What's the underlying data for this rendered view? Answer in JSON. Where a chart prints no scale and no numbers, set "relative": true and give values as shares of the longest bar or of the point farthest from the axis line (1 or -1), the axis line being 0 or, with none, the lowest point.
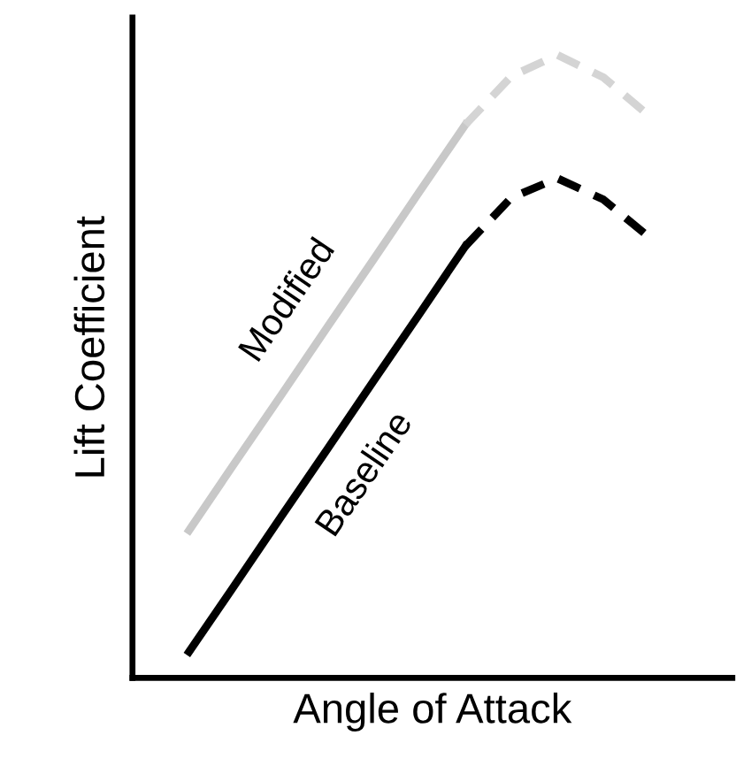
{
  "chart_data": {
    "type": "line",
    "relative": true,
    "xlabel": "Angle of Attack",
    "ylabel": "Lift Coefficient",
    "legend": false,
    "marker": "none",
    "categories": [
      null,
      null,
      null,
      null,
      null,
      null,
      null,
      null,
      null,
      null,
      null
    ],
    "series": [
      {
        "name": "Modified",
        "color": "#c8c8c8",
        "line_style": "solid",
        "values": [
          0.237,
          0.346,
          0.454,
          0.563,
          0.671,
          0.78,
          0.888,
          null,
          null,
          null,
          null
        ]
      },
      {
        "color": "#d4d4d4",
        "line_style": "dashed",
        "values": [
          null,
          null,
          null,
          null,
          null,
          null,
          0.888,
          0.966,
          1.0,
          0.964,
          0.902
        ]
      },
      {
        "name": "Baseline",
        "color": "#000000",
        "line_style": "solid",
        "values": [
          0.042,
          0.15,
          0.259,
          0.367,
          0.476,
          0.584,
          0.693,
          null,
          null,
          null,
          null
        ]
      },
      {
        "color": "#000000",
        "line_style": "dashed",
        "values": [
          null,
          null,
          null,
          null,
          null,
          null,
          0.693,
          0.771,
          0.802,
          0.768,
          0.707
        ]
      }
    ]
  }
}
